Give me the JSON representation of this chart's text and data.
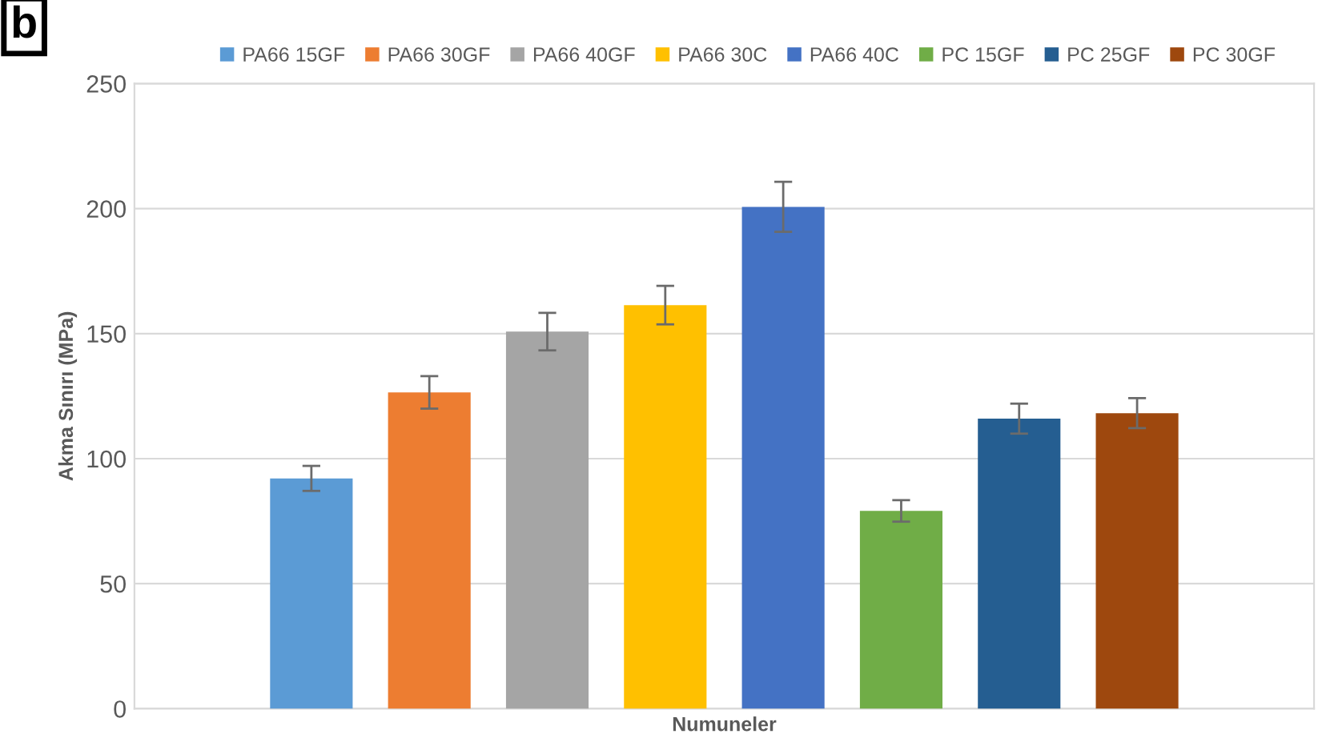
{
  "chart_data": {
    "type": "bar",
    "annotations": [
      "b"
    ],
    "xlabel": "Numuneler",
    "ylabel": "Akma Sınırı (MPa)",
    "categories": [
      null
    ],
    "series": [
      {
        "name": "PA66 15GF",
        "color": "#5b9bd5",
        "values": [
          92.1
        ],
        "errors": [
          5
        ]
      },
      {
        "name": "PA66 30GF",
        "color": "#ed7d31",
        "values": [
          126.5
        ],
        "errors": [
          6.5
        ]
      },
      {
        "name": "PA66 40GF",
        "color": "#a5a5a5",
        "values": [
          150.8
        ],
        "errors": [
          7.5
        ]
      },
      {
        "name": "PA66 30C",
        "color": "#ffc000",
        "values": [
          161.4
        ],
        "errors": [
          7.7
        ]
      },
      {
        "name": "PA66 40C",
        "color": "#4472c4",
        "values": [
          200.7
        ],
        "errors": [
          10
        ]
      },
      {
        "name": "PC 15GF",
        "color": "#70ad47",
        "values": [
          79.1
        ],
        "errors": [
          4.3
        ]
      },
      {
        "name": "PC 25GF",
        "color": "#255e91",
        "values": [
          116
        ],
        "errors": [
          6
        ]
      },
      {
        "name": "PC 30GF",
        "color": "#9e480e",
        "values": [
          118.2
        ],
        "errors": [
          6
        ]
      }
    ],
    "ylim": [
      0,
      250
    ],
    "yticks": [
      0,
      50,
      100,
      150,
      200,
      250
    ],
    "grid": "y",
    "legend": "top"
  }
}
